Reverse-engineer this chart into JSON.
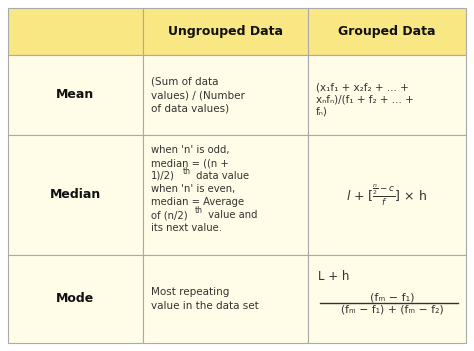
{
  "background_color": "#fffef5",
  "header_bg": "#f9e784",
  "cell_bg": "#fffde7",
  "border_color": "#aaaaaa",
  "text_color": "#333333",
  "header_text_color": "#111111",
  "row_label_color": "#111111",
  "col_labels": [
    "",
    "Ungrouped Data",
    "Grouped Data"
  ],
  "row_labels": [
    "Mean",
    "Median",
    "Mode"
  ],
  "ungrouped_mean": "(Sum of data\nvalues) / (Number\nof data values)",
  "ungrouped_median_line1": "when 'n' is odd,",
  "ungrouped_median_line2": "median = ((n +",
  "ungrouped_median_line3": "1)/2)",
  "ungrouped_median_th3": "th",
  "ungrouped_median_line3b": " data value",
  "ungrouped_median_line4": "when 'n' is even,",
  "ungrouped_median_line5": "median = Average",
  "ungrouped_median_line6": "of (n/2)",
  "ungrouped_median_th6": "th",
  "ungrouped_median_line6b": " value and",
  "ungrouped_median_line7": "its next value.",
  "ungrouped_mode": "Most repeating\nvalue in the data set",
  "grouped_mean_line1": "(x₁f₁ + x₂f₂ + ... +",
  "grouped_mean_line2": "xₙfₙ)/(f₁ + f₂ + ... +",
  "grouped_mean_line3": "fₙ)",
  "grouped_mode_top": "L + h",
  "grouped_mode_frac_num": "(fₘ − f₁)",
  "grouped_mode_frac_den": "(fₘ − f₁) + (fₘ − f₂)"
}
